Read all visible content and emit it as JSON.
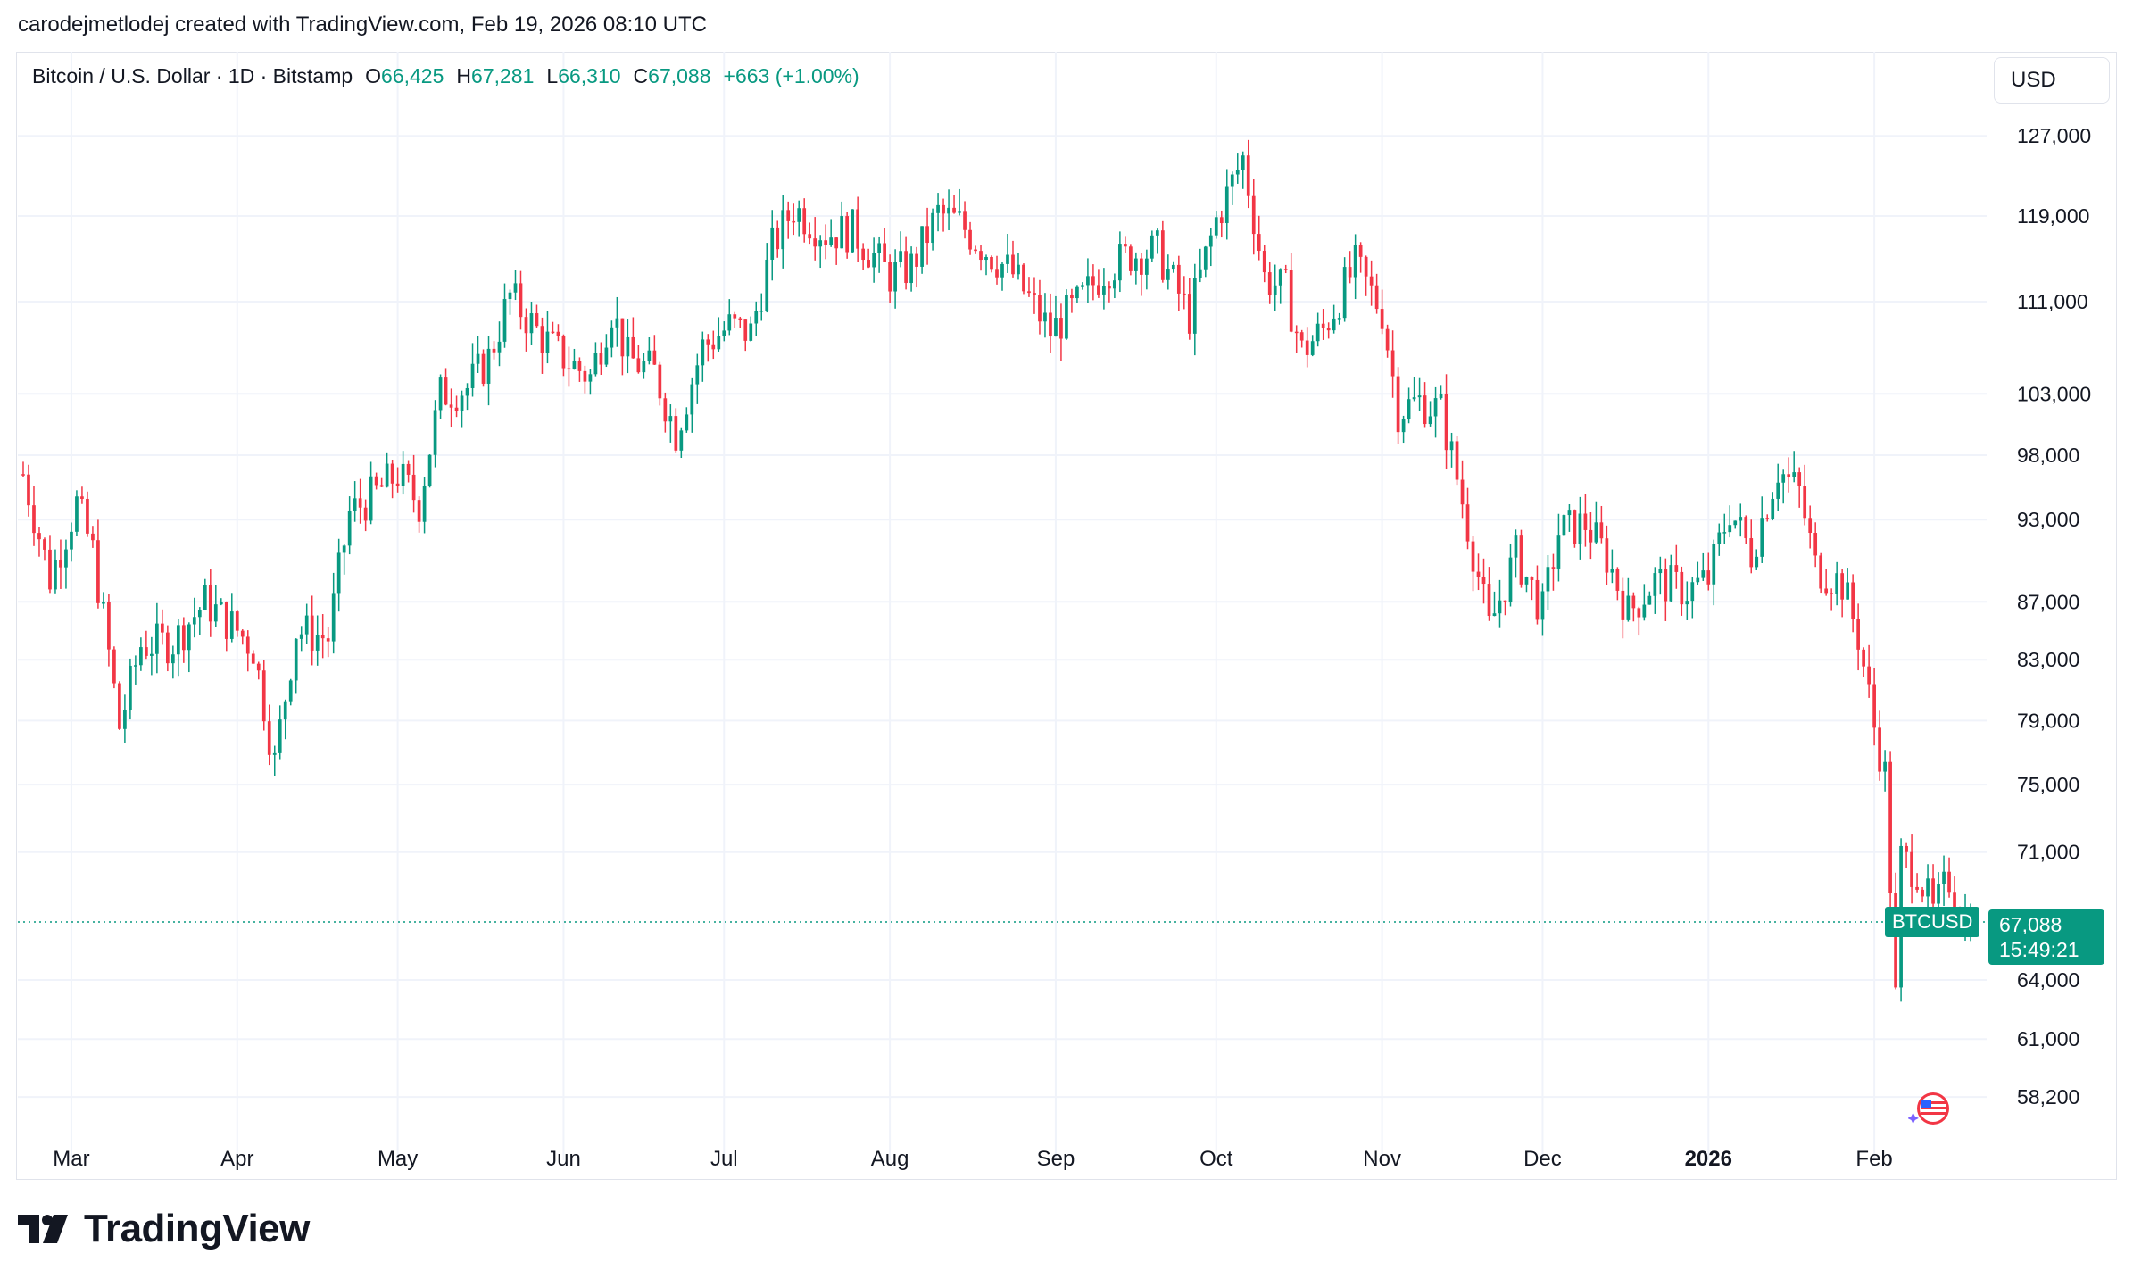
{
  "header": {
    "text": "carodejmetlodej created with TradingView.com, Feb 19, 2026 08:10 UTC"
  },
  "legend": {
    "symbol": "Bitcoin / U.S. Dollar · 1D · Bitstamp",
    "open_label": "O",
    "open": "66,425",
    "high_label": "H",
    "high": "67,281",
    "low_label": "L",
    "low": "66,310",
    "close_label": "C",
    "close": "67,088",
    "change": "+663 (+1.00%)"
  },
  "currency_button": "USD",
  "price_tag": {
    "symbol": "BTCUSD",
    "price": "67,088",
    "countdown": "15:49:21"
  },
  "brand": {
    "name": "TradingView"
  },
  "colors": {
    "up": "#089981",
    "down": "#f23645",
    "grid": "#f0f3fa",
    "text": "#131722"
  },
  "icons": {
    "flag": "us-flag-icon",
    "logo": "tradingview-logo-icon"
  },
  "chart_data": {
    "type": "candlestick",
    "title": "Bitcoin / U.S. Dollar · 1D · Bitstamp",
    "y_scale": "log",
    "y_ticks": [
      127000,
      119000,
      111000,
      103000,
      98000,
      93000,
      87000,
      83000,
      79000,
      75000,
      71000,
      64000,
      61000,
      58200
    ],
    "x_ticks": [
      {
        "label": "Mar",
        "date": "2025-03-01"
      },
      {
        "label": "Apr",
        "date": "2025-04-01"
      },
      {
        "label": "May",
        "date": "2025-05-01"
      },
      {
        "label": "Jun",
        "date": "2025-06-01"
      },
      {
        "label": "Jul",
        "date": "2025-07-01"
      },
      {
        "label": "Aug",
        "date": "2025-08-01"
      },
      {
        "label": "Sep",
        "date": "2025-09-01"
      },
      {
        "label": "Oct",
        "date": "2025-10-01"
      },
      {
        "label": "Nov",
        "date": "2025-11-01"
      },
      {
        "label": "Dec",
        "date": "2025-12-01"
      },
      {
        "label": "2026",
        "date": "2026-01-01",
        "bold": true
      },
      {
        "label": "Feb",
        "date": "2026-02-01"
      }
    ],
    "last_price": 67088,
    "close_series": [
      {
        "date": "2025-02-20",
        "close": 96500
      },
      {
        "date": "2025-02-25",
        "close": 88700
      },
      {
        "date": "2025-03-02",
        "close": 94200
      },
      {
        "date": "2025-03-05",
        "close": 90600
      },
      {
        "date": "2025-03-10",
        "close": 78600
      },
      {
        "date": "2025-03-14",
        "close": 84000
      },
      {
        "date": "2025-03-20",
        "close": 84200
      },
      {
        "date": "2025-03-26",
        "close": 87000
      },
      {
        "date": "2025-04-01",
        "close": 85000
      },
      {
        "date": "2025-04-04",
        "close": 83800
      },
      {
        "date": "2025-04-08",
        "close": 76300
      },
      {
        "date": "2025-04-12",
        "close": 85000
      },
      {
        "date": "2025-04-18",
        "close": 84500
      },
      {
        "date": "2025-04-22",
        "close": 93500
      },
      {
        "date": "2025-04-26",
        "close": 94700
      },
      {
        "date": "2025-05-01",
        "close": 96500
      },
      {
        "date": "2025-05-05",
        "close": 94200
      },
      {
        "date": "2025-05-09",
        "close": 103000
      },
      {
        "date": "2025-05-14",
        "close": 103500
      },
      {
        "date": "2025-05-18",
        "close": 106000
      },
      {
        "date": "2025-05-22",
        "close": 111500
      },
      {
        "date": "2025-05-28",
        "close": 107800
      },
      {
        "date": "2025-06-02",
        "close": 105700
      },
      {
        "date": "2025-06-06",
        "close": 104400
      },
      {
        "date": "2025-06-10",
        "close": 110300
      },
      {
        "date": "2025-06-13",
        "close": 106000
      },
      {
        "date": "2025-06-18",
        "close": 104800
      },
      {
        "date": "2025-06-22",
        "close": 99800
      },
      {
        "date": "2025-06-27",
        "close": 107000
      },
      {
        "date": "2025-07-02",
        "close": 108800
      },
      {
        "date": "2025-07-06",
        "close": 108200
      },
      {
        "date": "2025-07-10",
        "close": 116000
      },
      {
        "date": "2025-07-14",
        "close": 119800
      },
      {
        "date": "2025-07-20",
        "close": 117300
      },
      {
        "date": "2025-07-25",
        "close": 117600
      },
      {
        "date": "2025-08-01",
        "close": 113400
      },
      {
        "date": "2025-08-05",
        "close": 114200
      },
      {
        "date": "2025-08-10",
        "close": 119200
      },
      {
        "date": "2025-08-14",
        "close": 118300
      },
      {
        "date": "2025-08-18",
        "close": 116200
      },
      {
        "date": "2025-08-24",
        "close": 113500
      },
      {
        "date": "2025-08-31",
        "close": 108300
      },
      {
        "date": "2025-09-05",
        "close": 110700
      },
      {
        "date": "2025-09-10",
        "close": 113900
      },
      {
        "date": "2025-09-15",
        "close": 115300
      },
      {
        "date": "2025-09-20",
        "close": 115700
      },
      {
        "date": "2025-09-26",
        "close": 109700
      },
      {
        "date": "2025-10-01",
        "close": 118600
      },
      {
        "date": "2025-10-06",
        "close": 124700
      },
      {
        "date": "2025-10-10",
        "close": 113200
      },
      {
        "date": "2025-10-14",
        "close": 112000
      },
      {
        "date": "2025-10-17",
        "close": 106600
      },
      {
        "date": "2025-10-21",
        "close": 108500
      },
      {
        "date": "2025-10-27",
        "close": 114300
      },
      {
        "date": "2025-11-01",
        "close": 110100
      },
      {
        "date": "2025-11-04",
        "close": 101600
      },
      {
        "date": "2025-11-08",
        "close": 102400
      },
      {
        "date": "2025-11-12",
        "close": 101600
      },
      {
        "date": "2025-11-16",
        "close": 94400
      },
      {
        "date": "2025-11-21",
        "close": 85100
      },
      {
        "date": "2025-11-26",
        "close": 90400
      },
      {
        "date": "2025-12-01",
        "close": 86300
      },
      {
        "date": "2025-12-04",
        "close": 92100
      },
      {
        "date": "2025-12-09",
        "close": 92700
      },
      {
        "date": "2025-12-13",
        "close": 90200
      },
      {
        "date": "2025-12-17",
        "close": 86200
      },
      {
        "date": "2025-12-22",
        "close": 88500
      },
      {
        "date": "2025-12-28",
        "close": 87800
      },
      {
        "date": "2026-01-01",
        "close": 88600
      },
      {
        "date": "2026-01-05",
        "close": 93800
      },
      {
        "date": "2026-01-09",
        "close": 90500
      },
      {
        "date": "2026-01-14",
        "close": 96900
      },
      {
        "date": "2026-01-18",
        "close": 95100
      },
      {
        "date": "2026-01-21",
        "close": 89500
      },
      {
        "date": "2026-01-26",
        "close": 88300
      },
      {
        "date": "2026-01-29",
        "close": 84600
      },
      {
        "date": "2026-02-01",
        "close": 78600
      },
      {
        "date": "2026-02-03",
        "close": 75600
      },
      {
        "date": "2026-02-05",
        "close": 63000
      },
      {
        "date": "2026-02-06",
        "close": 70600
      },
      {
        "date": "2026-02-09",
        "close": 70000
      },
      {
        "date": "2026-02-12",
        "close": 67500
      },
      {
        "date": "2026-02-15",
        "close": 69500
      },
      {
        "date": "2026-02-17",
        "close": 67500
      },
      {
        "date": "2026-02-19",
        "close": 67088
      }
    ]
  }
}
